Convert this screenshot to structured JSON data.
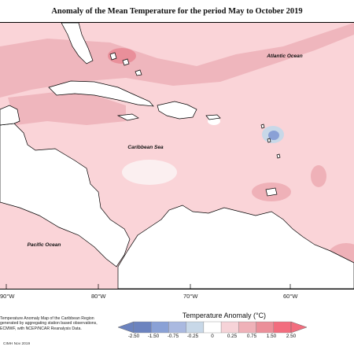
{
  "title": "Anomaly of the Mean Temperature for the period May to October 2019",
  "map_labels": {
    "atlantic": "Atlantic Ocean",
    "caribbean": "Caribbean Sea",
    "pacific": "Pacific Ocean"
  },
  "longitude_ticks": [
    "90°W",
    "80°W",
    "70°W",
    "60°W"
  ],
  "credit_lines": [
    "Temperature Anomaly Map of the Caribbean Region",
    "generated by aggregating station based observations,",
    "ECMWF, with NCEP/NCAR Reanalysis Data."
  ],
  "copyright": "CIMH Nov 2019",
  "legend": {
    "title": "Temperature Anomaly (°C)",
    "labels": [
      "-2.50",
      "-1.50",
      "-0.75",
      "-0.25",
      "0",
      "0.25",
      "0.75",
      "1.50",
      "2.50"
    ],
    "colors": [
      "#6c83bf",
      "#8aa1d6",
      "#aab9e0",
      "#c8d8e8",
      "#ffffff",
      "#f6d3d8",
      "#efb1b8",
      "#eb8f99",
      "#f26d7e"
    ]
  },
  "colors": {
    "land": "#ffffff",
    "anomaly_slight": "#fad4d8",
    "anomaly_moderate": "#efb1b8",
    "anomaly_strong": "#e98f9a",
    "anomaly_cool": "#8aa1d6"
  }
}
